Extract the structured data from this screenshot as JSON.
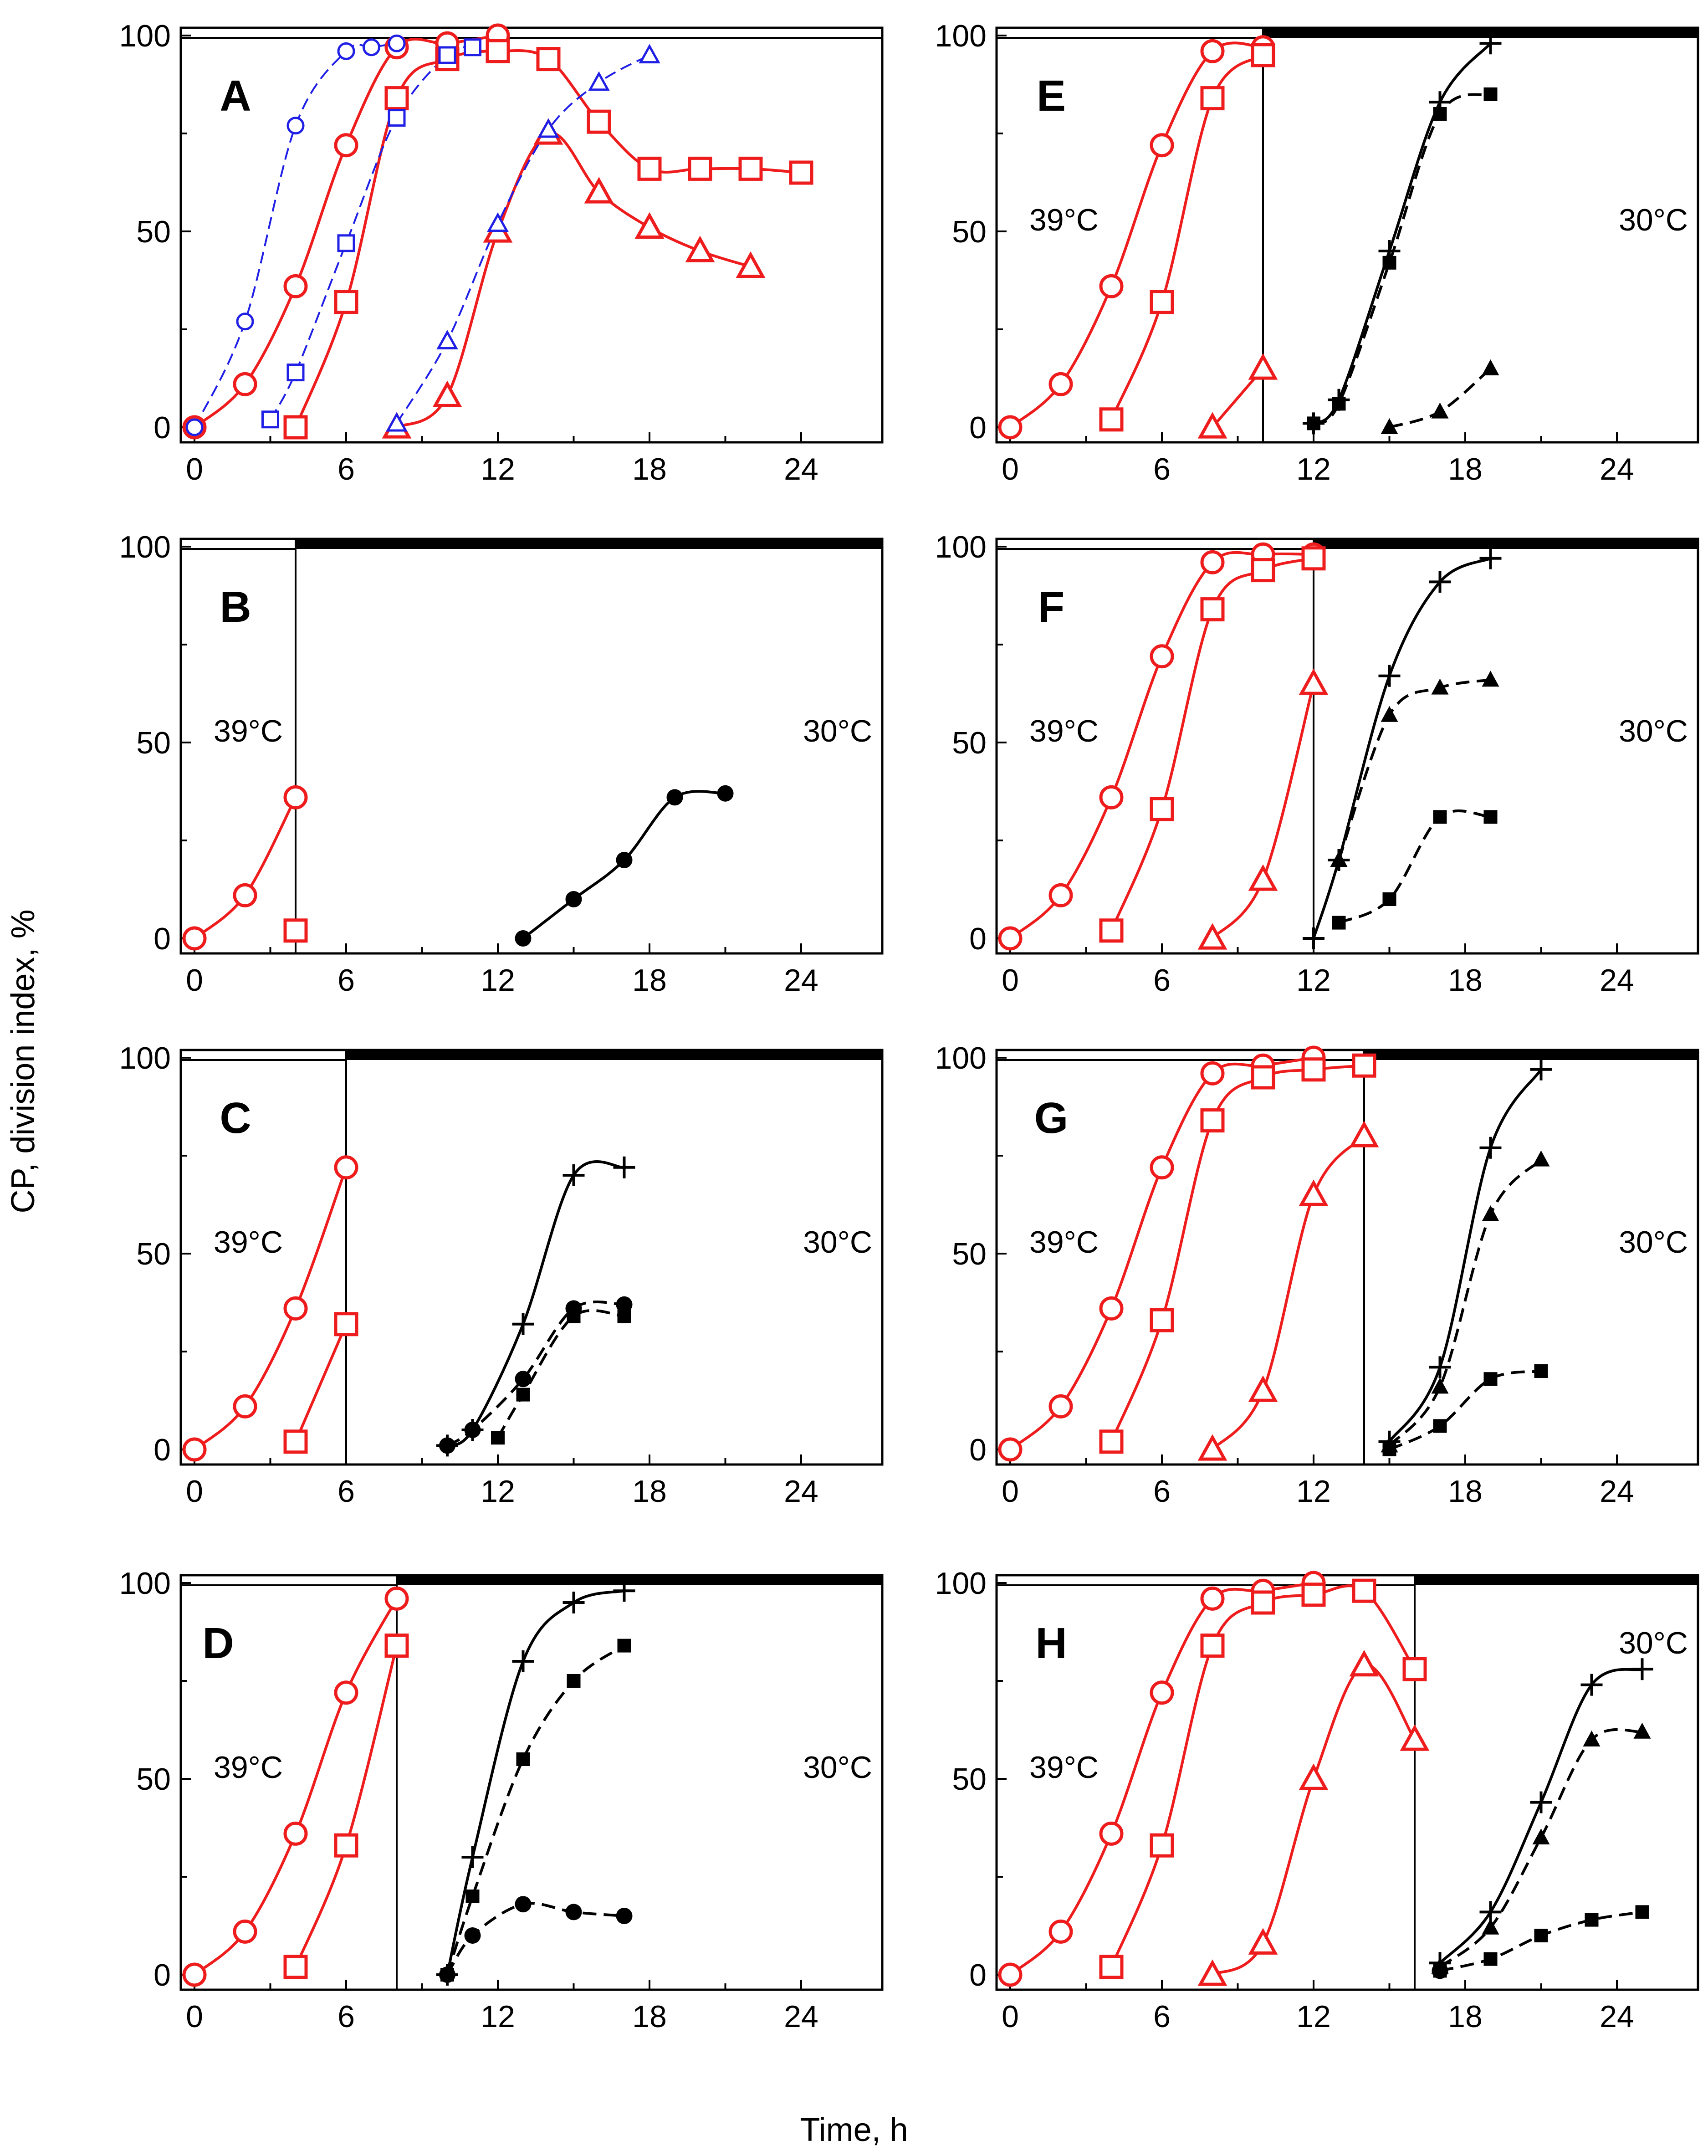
{
  "figure": {
    "ylabel": "CP, division index, %",
    "xlabel": "Time, h"
  },
  "colors": {
    "red": "#ee1c1c",
    "blue": "#1f1fe6",
    "black": "#000000"
  },
  "chart_data": [
    {
      "type": "line",
      "panel": "A",
      "xlim": [
        0,
        26
      ],
      "ylim": [
        0,
        100
      ],
      "xticks": [
        0,
        6,
        12,
        18,
        24
      ],
      "yticks": [
        0,
        50,
        100
      ],
      "shift_at": null,
      "temp_left": "",
      "temp_right": "",
      "series": [
        {
          "name": "red circle",
          "color": "red",
          "marker": "circle-open",
          "dash": false,
          "x": [
            0,
            2,
            4,
            6,
            8,
            10,
            12
          ],
          "y": [
            0,
            11,
            36,
            72,
            97,
            98,
            100
          ]
        },
        {
          "name": "red square",
          "color": "red",
          "marker": "square-open",
          "dash": false,
          "x": [
            4,
            6,
            8,
            10,
            12,
            14,
            16,
            18,
            20,
            22,
            24
          ],
          "y": [
            0,
            32,
            84,
            94,
            96,
            94,
            78,
            66,
            66,
            66,
            65
          ]
        },
        {
          "name": "red triangle",
          "color": "red",
          "marker": "triangle-open",
          "dash": false,
          "x": [
            8,
            10,
            12,
            14,
            16,
            18,
            20,
            22
          ],
          "y": [
            0,
            8,
            50,
            75,
            60,
            51,
            45,
            41
          ]
        },
        {
          "name": "blue circle",
          "color": "blue",
          "marker": "circle-open-small",
          "dash": true,
          "x": [
            0,
            2,
            4,
            6,
            7,
            8
          ],
          "y": [
            0,
            27,
            77,
            96,
            97,
            98
          ]
        },
        {
          "name": "blue square",
          "color": "blue",
          "marker": "square-open-small",
          "dash": true,
          "x": [
            3,
            4,
            6,
            8,
            10,
            11
          ],
          "y": [
            2,
            14,
            47,
            79,
            95,
            97
          ]
        },
        {
          "name": "blue triangle",
          "color": "blue",
          "marker": "triangle-open-small",
          "dash": true,
          "x": [
            8,
            10,
            12,
            14,
            16,
            18
          ],
          "y": [
            1,
            22,
            52,
            76,
            88,
            95
          ]
        }
      ]
    },
    {
      "type": "line",
      "panel": "B",
      "xlim": [
        0,
        26
      ],
      "ylim": [
        0,
        100
      ],
      "xticks": [
        0,
        6,
        12,
        18,
        24
      ],
      "yticks": [
        0,
        50,
        100
      ],
      "shift_at": 4,
      "temp_left": "39°C",
      "temp_right": "30°C",
      "series": [
        {
          "name": "red circle",
          "color": "red",
          "marker": "circle-open",
          "dash": false,
          "x": [
            0,
            2,
            4
          ],
          "y": [
            0,
            11,
            36
          ]
        },
        {
          "name": "red square",
          "color": "red",
          "marker": "square-open",
          "dash": false,
          "x": [
            4
          ],
          "y": [
            2
          ]
        },
        {
          "name": "black circle",
          "color": "black",
          "marker": "circle-filled",
          "dash": false,
          "x": [
            13,
            15,
            17,
            19,
            21
          ],
          "y": [
            0,
            10,
            20,
            36,
            37
          ]
        }
      ]
    },
    {
      "type": "line",
      "panel": "C",
      "xlim": [
        0,
        26
      ],
      "ylim": [
        0,
        100
      ],
      "xticks": [
        0,
        6,
        12,
        18,
        24
      ],
      "yticks": [
        0,
        50,
        100
      ],
      "shift_at": 6,
      "temp_left": "39°C",
      "temp_right": "30°C",
      "series": [
        {
          "name": "red circle",
          "color": "red",
          "marker": "circle-open",
          "dash": false,
          "x": [
            0,
            2,
            4,
            6
          ],
          "y": [
            0,
            11,
            36,
            72
          ]
        },
        {
          "name": "red square",
          "color": "red",
          "marker": "square-open",
          "dash": false,
          "x": [
            4,
            6
          ],
          "y": [
            2,
            32
          ]
        },
        {
          "name": "black plus",
          "color": "black",
          "marker": "plus",
          "dash": false,
          "x": [
            10,
            11,
            13,
            15,
            17
          ],
          "y": [
            1,
            5,
            32,
            70,
            72
          ]
        },
        {
          "name": "black circle",
          "color": "black",
          "marker": "circle-filled",
          "dash": true,
          "x": [
            10,
            11,
            13,
            15,
            17
          ],
          "y": [
            1,
            5,
            18,
            36,
            37
          ]
        },
        {
          "name": "black square",
          "color": "black",
          "marker": "square-filled",
          "dash": true,
          "x": [
            12,
            13,
            15,
            17
          ],
          "y": [
            3,
            14,
            34,
            34
          ]
        }
      ]
    },
    {
      "type": "line",
      "panel": "D",
      "xlim": [
        0,
        26
      ],
      "ylim": [
        0,
        100
      ],
      "xticks": [
        0,
        6,
        12,
        18,
        24
      ],
      "yticks": [
        0,
        50,
        100
      ],
      "shift_at": 8,
      "temp_left": "39°C",
      "temp_right": "30°C",
      "series": [
        {
          "name": "red circle",
          "color": "red",
          "marker": "circle-open",
          "dash": false,
          "x": [
            0,
            2,
            4,
            6,
            8
          ],
          "y": [
            0,
            11,
            36,
            72,
            96
          ]
        },
        {
          "name": "red square",
          "color": "red",
          "marker": "square-open",
          "dash": false,
          "x": [
            4,
            6,
            8
          ],
          "y": [
            2,
            33,
            84
          ]
        },
        {
          "name": "black plus",
          "color": "black",
          "marker": "plus",
          "dash": false,
          "x": [
            10,
            11,
            13,
            15,
            17
          ],
          "y": [
            0,
            30,
            80,
            95,
            98
          ]
        },
        {
          "name": "black square",
          "color": "black",
          "marker": "square-filled",
          "dash": true,
          "x": [
            10,
            11,
            13,
            15,
            17
          ],
          "y": [
            0,
            20,
            55,
            75,
            84
          ]
        },
        {
          "name": "black circle",
          "color": "black",
          "marker": "circle-filled",
          "dash": true,
          "x": [
            10,
            11,
            13,
            15,
            17
          ],
          "y": [
            0,
            10,
            18,
            16,
            15
          ]
        }
      ]
    },
    {
      "type": "line",
      "panel": "E",
      "xlim": [
        0,
        26
      ],
      "ylim": [
        0,
        100
      ],
      "xticks": [
        0,
        6,
        12,
        18,
        24
      ],
      "yticks": [
        0,
        50,
        100
      ],
      "shift_at": 10,
      "temp_left": "39°C",
      "temp_right": "30°C",
      "series": [
        {
          "name": "red circle",
          "color": "red",
          "marker": "circle-open",
          "dash": false,
          "x": [
            0,
            2,
            4,
            6,
            8,
            10
          ],
          "y": [
            0,
            11,
            36,
            72,
            96,
            97
          ]
        },
        {
          "name": "red square",
          "color": "red",
          "marker": "square-open",
          "dash": false,
          "x": [
            4,
            6,
            8,
            10
          ],
          "y": [
            2,
            32,
            84,
            95
          ]
        },
        {
          "name": "red triangle",
          "color": "red",
          "marker": "triangle-open",
          "dash": false,
          "x": [
            8,
            10
          ],
          "y": [
            0,
            15
          ]
        },
        {
          "name": "black plus",
          "color": "black",
          "marker": "plus",
          "dash": false,
          "x": [
            12,
            13,
            15,
            17,
            19
          ],
          "y": [
            1,
            7,
            45,
            83,
            98
          ]
        },
        {
          "name": "black square",
          "color": "black",
          "marker": "square-filled",
          "dash": true,
          "x": [
            12,
            13,
            15,
            17,
            19
          ],
          "y": [
            1,
            6,
            42,
            80,
            85
          ]
        },
        {
          "name": "black triangle",
          "color": "black",
          "marker": "triangle-filled",
          "dash": true,
          "x": [
            15,
            17,
            19
          ],
          "y": [
            0,
            4,
            15
          ]
        }
      ]
    },
    {
      "type": "line",
      "panel": "F",
      "xlim": [
        0,
        26
      ],
      "ylim": [
        0,
        100
      ],
      "xticks": [
        0,
        6,
        12,
        18,
        24
      ],
      "yticks": [
        0,
        50,
        100
      ],
      "shift_at": 12,
      "temp_left": "39°C",
      "temp_right": "30°C",
      "series": [
        {
          "name": "red circle",
          "color": "red",
          "marker": "circle-open",
          "dash": false,
          "x": [
            0,
            2,
            4,
            6,
            8,
            10,
            12
          ],
          "y": [
            0,
            11,
            36,
            72,
            96,
            98,
            98
          ]
        },
        {
          "name": "red square",
          "color": "red",
          "marker": "square-open",
          "dash": false,
          "x": [
            4,
            6,
            8,
            10,
            12
          ],
          "y": [
            2,
            33,
            84,
            94,
            97
          ]
        },
        {
          "name": "red triangle",
          "color": "red",
          "marker": "triangle-open",
          "dash": false,
          "x": [
            8,
            10,
            12
          ],
          "y": [
            0,
            15,
            65
          ]
        },
        {
          "name": "black plus",
          "color": "black",
          "marker": "plus",
          "dash": false,
          "x": [
            12,
            13,
            15,
            17,
            19
          ],
          "y": [
            0,
            20,
            67,
            91,
            97
          ]
        },
        {
          "name": "black triangle",
          "color": "black",
          "marker": "triangle-filled",
          "dash": true,
          "x": [
            13,
            15,
            17,
            19
          ],
          "y": [
            20,
            57,
            64,
            66
          ]
        },
        {
          "name": "black square",
          "color": "black",
          "marker": "square-filled",
          "dash": true,
          "x": [
            13,
            15,
            17,
            19
          ],
          "y": [
            4,
            10,
            31,
            31
          ]
        }
      ]
    },
    {
      "type": "line",
      "panel": "G",
      "xlim": [
        0,
        26
      ],
      "ylim": [
        0,
        100
      ],
      "xticks": [
        0,
        6,
        12,
        18,
        24
      ],
      "yticks": [
        0,
        50,
        100
      ],
      "shift_at": 14,
      "temp_left": "39°C",
      "temp_right": "30°C",
      "series": [
        {
          "name": "red circle",
          "color": "red",
          "marker": "circle-open",
          "dash": false,
          "x": [
            0,
            2,
            4,
            6,
            8,
            10,
            12
          ],
          "y": [
            0,
            11,
            36,
            72,
            96,
            98,
            100
          ]
        },
        {
          "name": "red square",
          "color": "red",
          "marker": "square-open",
          "dash": false,
          "x": [
            4,
            6,
            8,
            10,
            12,
            14
          ],
          "y": [
            2,
            33,
            84,
            95,
            97,
            98
          ]
        },
        {
          "name": "red triangle",
          "color": "red",
          "marker": "triangle-open",
          "dash": false,
          "x": [
            8,
            10,
            12,
            14
          ],
          "y": [
            0,
            15,
            65,
            80
          ]
        },
        {
          "name": "black plus",
          "color": "black",
          "marker": "plus",
          "dash": false,
          "x": [
            15,
            17,
            19,
            21
          ],
          "y": [
            2,
            21,
            77,
            97
          ]
        },
        {
          "name": "black triangle",
          "color": "black",
          "marker": "triangle-filled",
          "dash": true,
          "x": [
            15,
            17,
            19,
            21
          ],
          "y": [
            1,
            16,
            60,
            74
          ]
        },
        {
          "name": "black square",
          "color": "black",
          "marker": "square-filled",
          "dash": true,
          "x": [
            15,
            17,
            19,
            21
          ],
          "y": [
            0,
            6,
            18,
            20
          ]
        }
      ]
    },
    {
      "type": "line",
      "panel": "H",
      "xlim": [
        0,
        26
      ],
      "ylim": [
        0,
        100
      ],
      "xticks": [
        0,
        6,
        12,
        18,
        24
      ],
      "yticks": [
        0,
        50,
        100
      ],
      "shift_at": 16,
      "temp_left": "39°C",
      "temp_right": "30°C",
      "series": [
        {
          "name": "red circle",
          "color": "red",
          "marker": "circle-open",
          "dash": false,
          "x": [
            0,
            2,
            4,
            6,
            8,
            10,
            12
          ],
          "y": [
            0,
            11,
            36,
            72,
            96,
            98,
            100
          ]
        },
        {
          "name": "red square",
          "color": "red",
          "marker": "square-open",
          "dash": false,
          "x": [
            4,
            6,
            8,
            10,
            12,
            14,
            16
          ],
          "y": [
            2,
            33,
            84,
            95,
            97,
            98,
            78
          ]
        },
        {
          "name": "red triangle",
          "color": "red",
          "marker": "triangle-open",
          "dash": false,
          "x": [
            8,
            10,
            12,
            14,
            16
          ],
          "y": [
            0,
            8,
            50,
            79,
            60
          ]
        },
        {
          "name": "black circle",
          "color": "black",
          "marker": "circle-filled",
          "dash": false,
          "x": [
            17
          ],
          "y": [
            1
          ]
        },
        {
          "name": "black plus",
          "color": "black",
          "marker": "plus",
          "dash": false,
          "x": [
            17,
            19,
            21,
            23,
            25
          ],
          "y": [
            3,
            16,
            44,
            74,
            78
          ]
        },
        {
          "name": "black triangle",
          "color": "black",
          "marker": "triangle-filled",
          "dash": true,
          "x": [
            17,
            19,
            21,
            23,
            25
          ],
          "y": [
            2,
            12,
            35,
            60,
            62
          ]
        },
        {
          "name": "black square",
          "color": "black",
          "marker": "square-filled",
          "dash": true,
          "x": [
            17,
            19,
            21,
            23,
            25
          ],
          "y": [
            1,
            4,
            10,
            14,
            16
          ]
        }
      ]
    }
  ]
}
